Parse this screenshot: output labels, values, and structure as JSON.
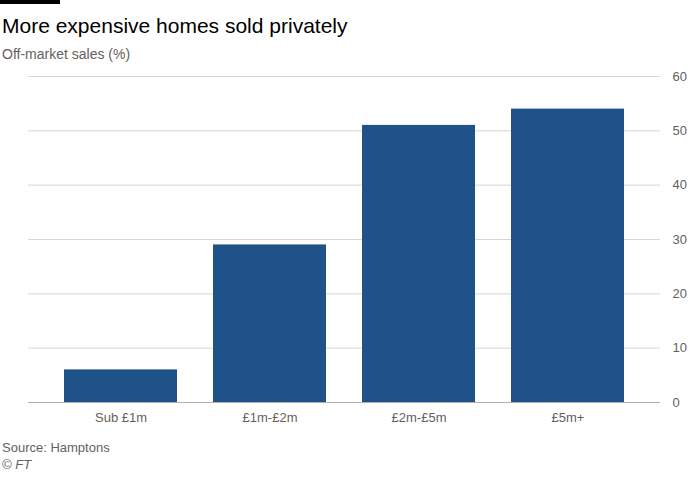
{
  "chart_data": {
    "type": "bar",
    "title": "More expensive homes sold privately",
    "subtitle": "Off-market sales (%)",
    "categories": [
      "Sub £1m",
      "£1m-£2m",
      "£2m-£5m",
      "£5m+"
    ],
    "values": [
      6,
      29,
      51,
      54
    ],
    "color": "#1f5289",
    "ylim": [
      0,
      60
    ],
    "yticks": [
      0,
      10,
      20,
      30,
      40,
      50,
      60
    ],
    "grid": true,
    "source": "Source: Hamptons",
    "credit": "© FT"
  }
}
